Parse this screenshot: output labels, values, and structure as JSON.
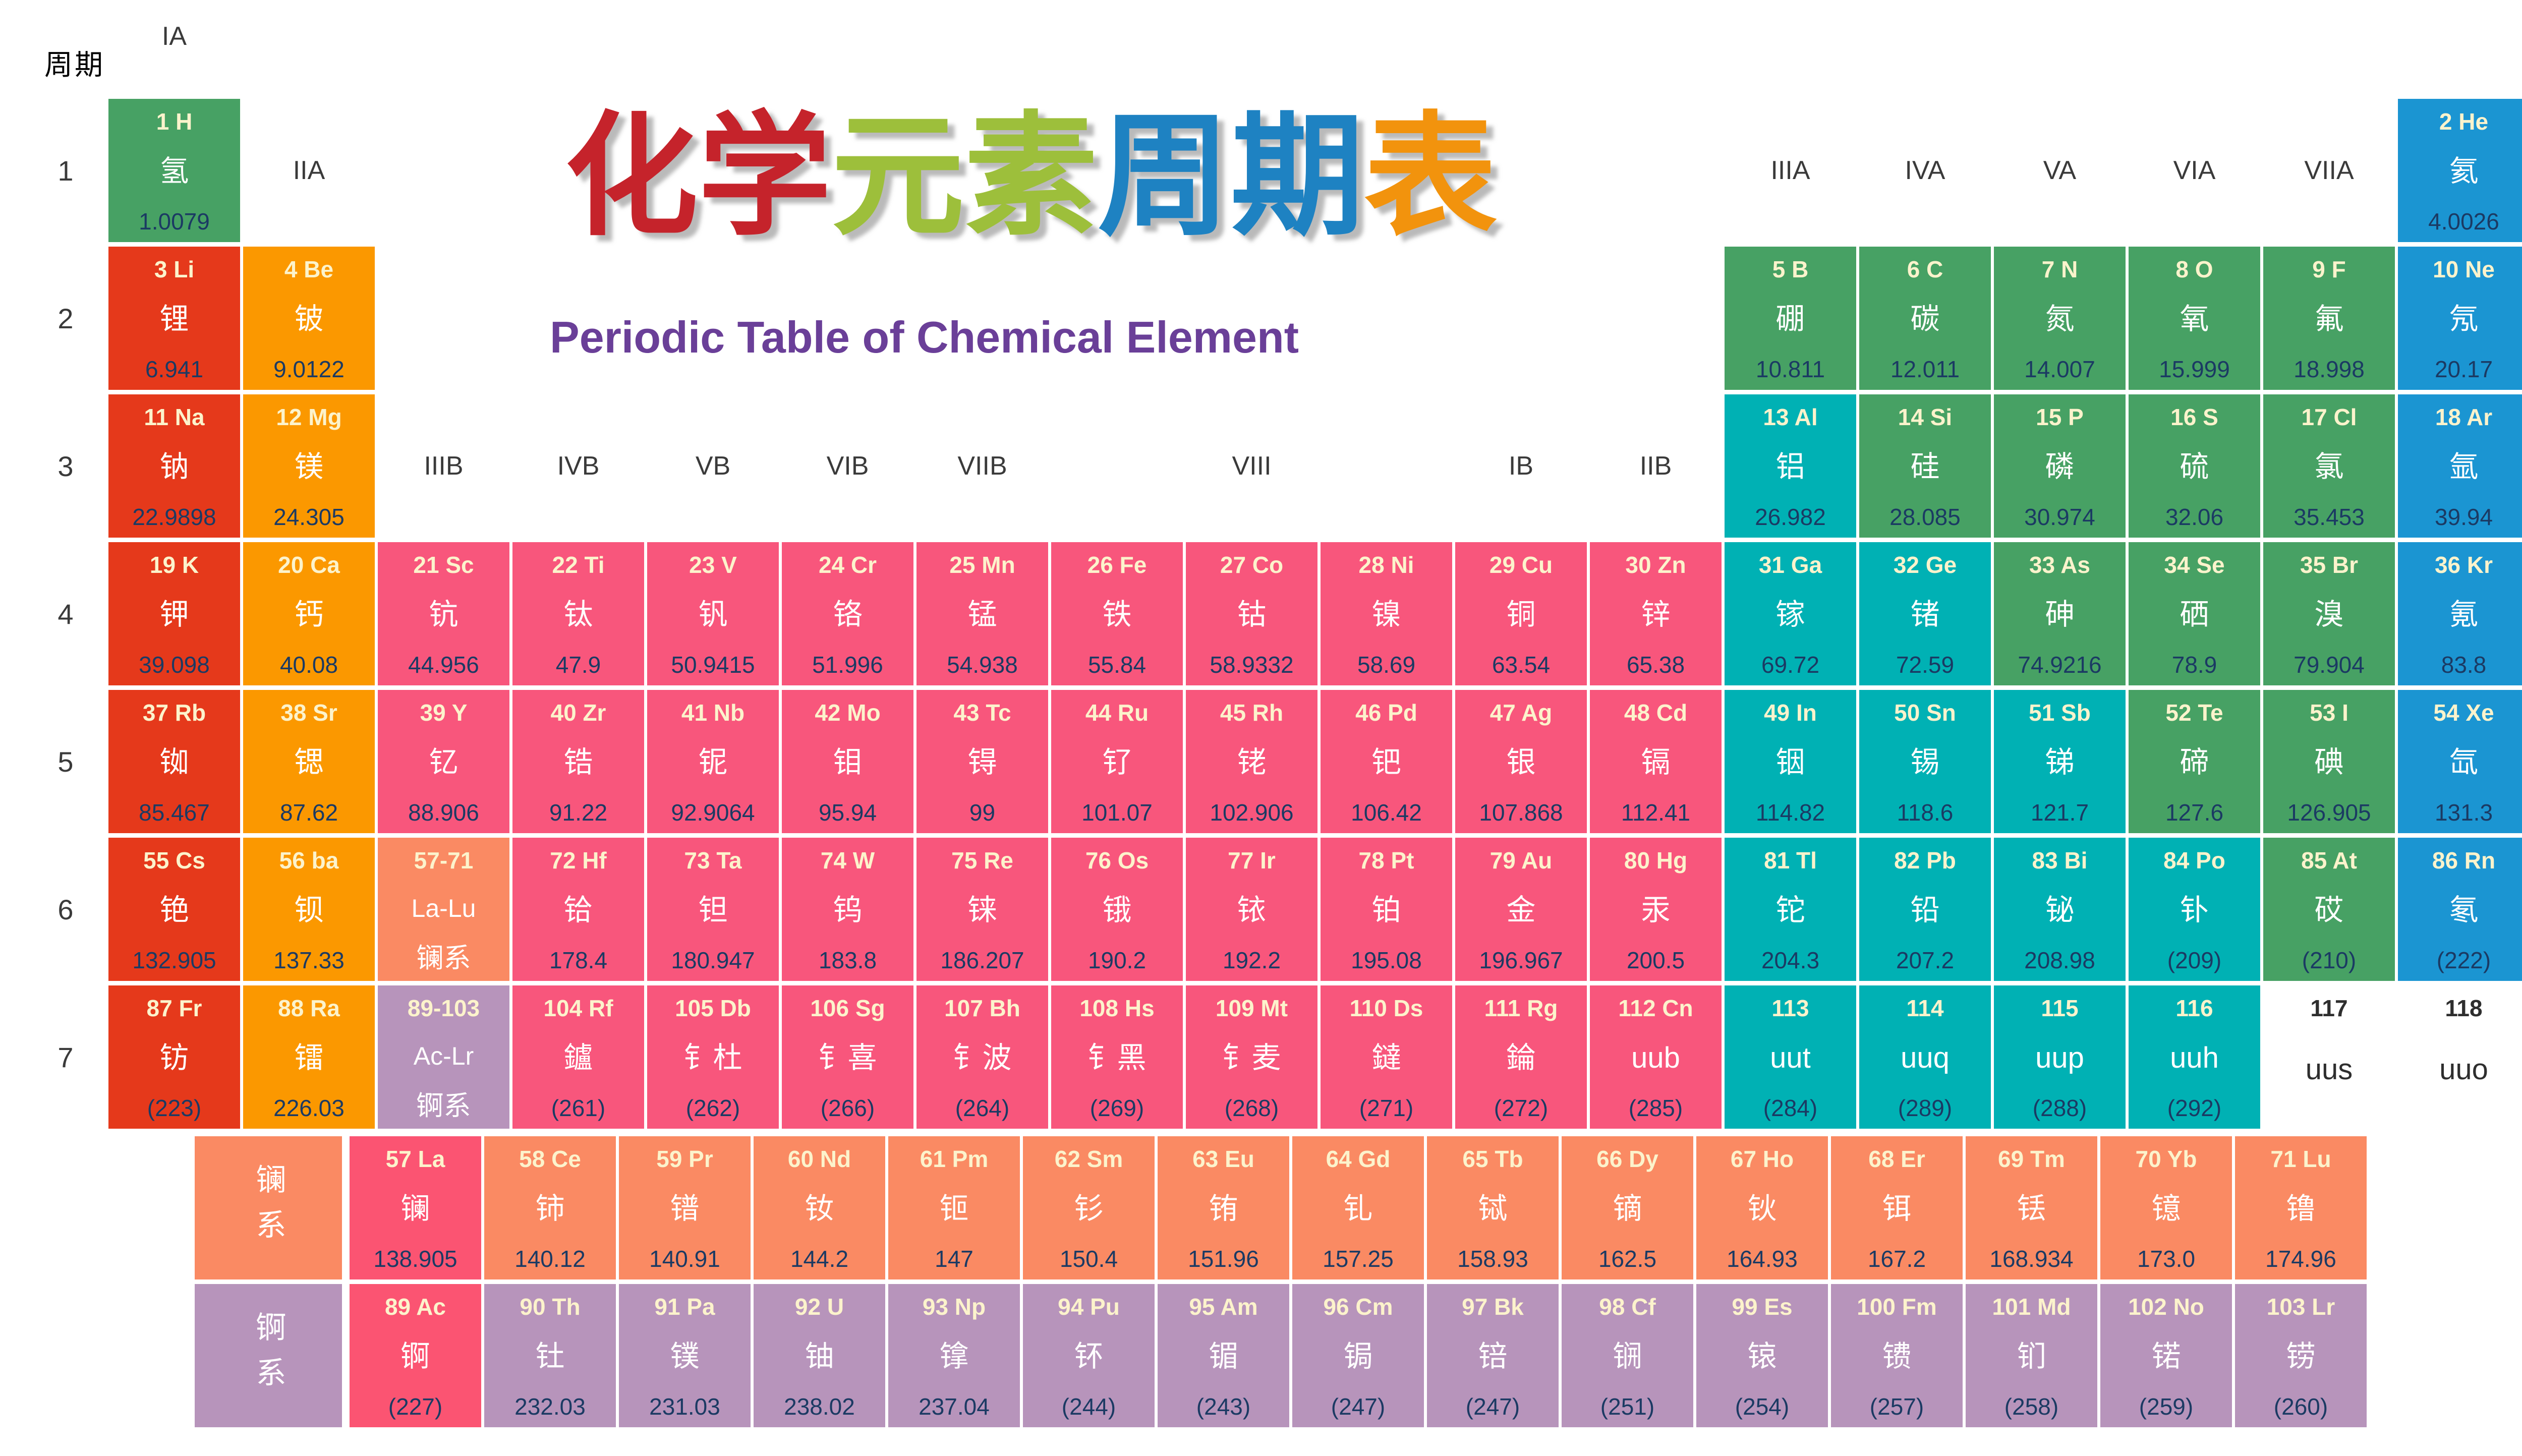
{
  "title": {
    "chars": [
      {
        "ch": "化",
        "color": "#c5232b"
      },
      {
        "ch": "学",
        "color": "#c5232b"
      },
      {
        "ch": "元",
        "color": "#9dbf3b"
      },
      {
        "ch": "素",
        "color": "#9dbf3b"
      },
      {
        "ch": "周",
        "color": "#1e82c2"
      },
      {
        "ch": "期",
        "color": "#1e82c2"
      },
      {
        "ch": "表",
        "color": "#f2930d"
      }
    ],
    "en": "Periodic Table of Chemical Element",
    "en_color": "#6a3f98"
  },
  "axis": {
    "period_label": "周期",
    "periods": [
      "1",
      "2",
      "3",
      "4",
      "5",
      "6",
      "7"
    ]
  },
  "groups": [
    {
      "t": "IA",
      "c": 1,
      "band": "top"
    },
    {
      "t": "IIA",
      "c": 2,
      "band": "p1"
    },
    {
      "t": "IIIB",
      "c": 3,
      "band": "p3"
    },
    {
      "t": "IVB",
      "c": 4,
      "band": "p3"
    },
    {
      "t": "VB",
      "c": 5,
      "band": "p3"
    },
    {
      "t": "VIB",
      "c": 6,
      "band": "p3"
    },
    {
      "t": "VIIB",
      "c": 7,
      "band": "p3"
    },
    {
      "t": "VIII",
      "c": 9,
      "band": "p3"
    },
    {
      "t": "IB",
      "c": 11,
      "band": "p3"
    },
    {
      "t": "IIB",
      "c": 12,
      "band": "p3"
    },
    {
      "t": "IIIA",
      "c": 13,
      "band": "p1"
    },
    {
      "t": "IVA",
      "c": 14,
      "band": "p1"
    },
    {
      "t": "VA",
      "c": 15,
      "band": "p1"
    },
    {
      "t": "VIA",
      "c": 16,
      "band": "p1"
    },
    {
      "t": "VIIA",
      "c": 17,
      "band": "p1"
    }
  ],
  "palette": {
    "red": "#e5391b",
    "orange": "#fb9800",
    "pink": "#f8567c",
    "teal": "#00b1b4",
    "green": "#47a164",
    "blue": "#1b95d2",
    "salmon": "#fa8a63",
    "lilac": "#b794bb",
    "hotpink": "#fb5472",
    "plain": "transparent"
  },
  "cells": [
    {
      "t": "1 H",
      "zh": "氢",
      "m": "1.0079",
      "cat": "green",
      "r": 1,
      "c": 1
    },
    {
      "t": "2 He",
      "zh": "氦",
      "m": "4.0026",
      "cat": "blue",
      "r": 1,
      "c": 18
    },
    {
      "t": "3 Li",
      "zh": "锂",
      "m": "6.941",
      "cat": "red",
      "r": 2,
      "c": 1
    },
    {
      "t": "4 Be",
      "zh": "铍",
      "m": "9.0122",
      "cat": "orange",
      "r": 2,
      "c": 2
    },
    {
      "t": "5 B",
      "zh": "硼",
      "m": "10.811",
      "cat": "green",
      "r": 2,
      "c": 13
    },
    {
      "t": "6 C",
      "zh": "碳",
      "m": "12.011",
      "cat": "green",
      "r": 2,
      "c": 14
    },
    {
      "t": "7 N",
      "zh": "氮",
      "m": "14.007",
      "cat": "green",
      "r": 2,
      "c": 15
    },
    {
      "t": "8 O",
      "zh": "氧",
      "m": "15.999",
      "cat": "green",
      "r": 2,
      "c": 16
    },
    {
      "t": "9 F",
      "zh": "氟",
      "m": "18.998",
      "cat": "green",
      "r": 2,
      "c": 17
    },
    {
      "t": "10 Ne",
      "zh": "氖",
      "m": "20.17",
      "cat": "blue",
      "r": 2,
      "c": 18
    },
    {
      "t": "11 Na",
      "zh": "钠",
      "m": "22.9898",
      "cat": "red",
      "r": 3,
      "c": 1
    },
    {
      "t": "12 Mg",
      "zh": "镁",
      "m": "24.305",
      "cat": "orange",
      "r": 3,
      "c": 2
    },
    {
      "t": "13 Al",
      "zh": "铝",
      "m": "26.982",
      "cat": "teal",
      "r": 3,
      "c": 13
    },
    {
      "t": "14 Si",
      "zh": "硅",
      "m": "28.085",
      "cat": "green",
      "r": 3,
      "c": 14
    },
    {
      "t": "15 P",
      "zh": "磷",
      "m": "30.974",
      "cat": "green",
      "r": 3,
      "c": 15
    },
    {
      "t": "16 S",
      "zh": "硫",
      "m": "32.06",
      "cat": "green",
      "r": 3,
      "c": 16
    },
    {
      "t": "17 Cl",
      "zh": "氯",
      "m": "35.453",
      "cat": "green",
      "r": 3,
      "c": 17
    },
    {
      "t": "18 Ar",
      "zh": "氩",
      "m": "39.94",
      "cat": "blue",
      "r": 3,
      "c": 18
    },
    {
      "t": "19 K",
      "zh": "钾",
      "m": "39.098",
      "cat": "red",
      "r": 4,
      "c": 1
    },
    {
      "t": "20 Ca",
      "zh": "钙",
      "m": "40.08",
      "cat": "orange",
      "r": 4,
      "c": 2
    },
    {
      "t": "21 Sc",
      "zh": "钪",
      "m": "44.956",
      "cat": "pink",
      "r": 4,
      "c": 3
    },
    {
      "t": "22 Ti",
      "zh": "钛",
      "m": "47.9",
      "cat": "pink",
      "r": 4,
      "c": 4
    },
    {
      "t": "23 V",
      "zh": "钒",
      "m": "50.9415",
      "cat": "pink",
      "r": 4,
      "c": 5
    },
    {
      "t": "24 Cr",
      "zh": "铬",
      "m": "51.996",
      "cat": "pink",
      "r": 4,
      "c": 6
    },
    {
      "t": "25 Mn",
      "zh": "锰",
      "m": "54.938",
      "cat": "pink",
      "r": 4,
      "c": 7
    },
    {
      "t": "26 Fe",
      "zh": "铁",
      "m": "55.84",
      "cat": "pink",
      "r": 4,
      "c": 8
    },
    {
      "t": "27 Co",
      "zh": "钴",
      "m": "58.9332",
      "cat": "pink",
      "r": 4,
      "c": 9
    },
    {
      "t": "28 Ni",
      "zh": "镍",
      "m": "58.69",
      "cat": "pink",
      "r": 4,
      "c": 10
    },
    {
      "t": "29 Cu",
      "zh": "铜",
      "m": "63.54",
      "cat": "pink",
      "r": 4,
      "c": 11
    },
    {
      "t": "30 Zn",
      "zh": "锌",
      "m": "65.38",
      "cat": "pink",
      "r": 4,
      "c": 12
    },
    {
      "t": "31 Ga",
      "zh": "镓",
      "m": "69.72",
      "cat": "teal",
      "r": 4,
      "c": 13
    },
    {
      "t": "32 Ge",
      "zh": "锗",
      "m": "72.59",
      "cat": "teal",
      "r": 4,
      "c": 14
    },
    {
      "t": "33 As",
      "zh": "砷",
      "m": "74.9216",
      "cat": "green",
      "r": 4,
      "c": 15
    },
    {
      "t": "34 Se",
      "zh": "硒",
      "m": "78.9",
      "cat": "green",
      "r": 4,
      "c": 16
    },
    {
      "t": "35 Br",
      "zh": "溴",
      "m": "79.904",
      "cat": "green",
      "r": 4,
      "c": 17
    },
    {
      "t": "36 Kr",
      "zh": "氪",
      "m": "83.8",
      "cat": "blue",
      "r": 4,
      "c": 18
    },
    {
      "t": "37 Rb",
      "zh": "铷",
      "m": "85.467",
      "cat": "red",
      "r": 5,
      "c": 1
    },
    {
      "t": "38 Sr",
      "zh": "锶",
      "m": "87.62",
      "cat": "orange",
      "r": 5,
      "c": 2
    },
    {
      "t": "39 Y",
      "zh": "钇",
      "m": "88.906",
      "cat": "pink",
      "r": 5,
      "c": 3
    },
    {
      "t": "40 Zr",
      "zh": "锆",
      "m": "91.22",
      "cat": "pink",
      "r": 5,
      "c": 4
    },
    {
      "t": "41 Nb",
      "zh": "铌",
      "m": "92.9064",
      "cat": "pink",
      "r": 5,
      "c": 5
    },
    {
      "t": "42 Mo",
      "zh": "钼",
      "m": "95.94",
      "cat": "pink",
      "r": 5,
      "c": 6
    },
    {
      "t": "43 Tc",
      "zh": "锝",
      "m": "99",
      "cat": "pink",
      "r": 5,
      "c": 7
    },
    {
      "t": "44 Ru",
      "zh": "钌",
      "m": "101.07",
      "cat": "pink",
      "r": 5,
      "c": 8
    },
    {
      "t": "45 Rh",
      "zh": "铑",
      "m": "102.906",
      "cat": "pink",
      "r": 5,
      "c": 9
    },
    {
      "t": "46 Pd",
      "zh": "钯",
      "m": "106.42",
      "cat": "pink",
      "r": 5,
      "c": 10
    },
    {
      "t": "47 Ag",
      "zh": "银",
      "m": "107.868",
      "cat": "pink",
      "r": 5,
      "c": 11
    },
    {
      "t": "48 Cd",
      "zh": "镉",
      "m": "112.41",
      "cat": "pink",
      "r": 5,
      "c": 12
    },
    {
      "t": "49 In",
      "zh": "铟",
      "m": "114.82",
      "cat": "teal",
      "r": 5,
      "c": 13
    },
    {
      "t": "50 Sn",
      "zh": "锡",
      "m": "118.6",
      "cat": "teal",
      "r": 5,
      "c": 14
    },
    {
      "t": "51 Sb",
      "zh": "锑",
      "m": "121.7",
      "cat": "teal",
      "r": 5,
      "c": 15
    },
    {
      "t": "52 Te",
      "zh": "碲",
      "m": "127.6",
      "cat": "green",
      "r": 5,
      "c": 16
    },
    {
      "t": "53 I",
      "zh": "碘",
      "m": "126.905",
      "cat": "green",
      "r": 5,
      "c": 17
    },
    {
      "t": "54 Xe",
      "zh": "氙",
      "m": "131.3",
      "cat": "blue",
      "r": 5,
      "c": 18
    },
    {
      "t": "55 Cs",
      "zh": "铯",
      "m": "132.905",
      "cat": "red",
      "r": 6,
      "c": 1
    },
    {
      "t": "56 ba",
      "zh": "钡",
      "m": "137.33",
      "cat": "orange",
      "r": 6,
      "c": 2
    },
    {
      "t": "57-71",
      "zh": "La-Lu",
      "m": "镧系",
      "cat": "salmon",
      "ph": true,
      "r": 6,
      "c": 3
    },
    {
      "t": "72 Hf",
      "zh": "铪",
      "m": "178.4",
      "cat": "pink",
      "r": 6,
      "c": 4
    },
    {
      "t": "73 Ta",
      "zh": "钽",
      "m": "180.947",
      "cat": "pink",
      "r": 6,
      "c": 5
    },
    {
      "t": "74 W",
      "zh": "钨",
      "m": "183.8",
      "cat": "pink",
      "r": 6,
      "c": 6
    },
    {
      "t": "75 Re",
      "zh": "铼",
      "m": "186.207",
      "cat": "pink",
      "r": 6,
      "c": 7
    },
    {
      "t": "76 Os",
      "zh": "锇",
      "m": "190.2",
      "cat": "pink",
      "r": 6,
      "c": 8
    },
    {
      "t": "77 Ir",
      "zh": "铱",
      "m": "192.2",
      "cat": "pink",
      "r": 6,
      "c": 9
    },
    {
      "t": "78 Pt",
      "zh": "铂",
      "m": "195.08",
      "cat": "pink",
      "r": 6,
      "c": 10
    },
    {
      "t": "79 Au",
      "zh": "金",
      "m": "196.967",
      "cat": "pink",
      "r": 6,
      "c": 11
    },
    {
      "t": "80 Hg",
      "zh": "汞",
      "m": "200.5",
      "cat": "pink",
      "r": 6,
      "c": 12
    },
    {
      "t": "81 Tl",
      "zh": "铊",
      "m": "204.3",
      "cat": "teal",
      "r": 6,
      "c": 13
    },
    {
      "t": "82 Pb",
      "zh": "铅",
      "m": "207.2",
      "cat": "teal",
      "r": 6,
      "c": 14
    },
    {
      "t": "83 Bi",
      "zh": "铋",
      "m": "208.98",
      "cat": "teal",
      "r": 6,
      "c": 15
    },
    {
      "t": "84 Po",
      "zh": "钋",
      "m": "(209)",
      "cat": "teal",
      "r": 6,
      "c": 16
    },
    {
      "t": "85 At",
      "zh": "砹",
      "m": "(210)",
      "cat": "green",
      "r": 6,
      "c": 17
    },
    {
      "t": "86 Rn",
      "zh": "氡",
      "m": "(222)",
      "cat": "blue",
      "r": 6,
      "c": 18
    },
    {
      "t": "87 Fr",
      "zh": "钫",
      "m": "(223)",
      "cat": "red",
      "r": 7,
      "c": 1
    },
    {
      "t": "88 Ra",
      "zh": "镭",
      "m": "226.03",
      "cat": "orange",
      "r": 7,
      "c": 2
    },
    {
      "t": "89-103",
      "zh": "Ac-Lr",
      "m": "锕系",
      "cat": "lilac",
      "ph": true,
      "r": 7,
      "c": 3
    },
    {
      "t": "104 Rf",
      "zh": "鑪",
      "m": "(261)",
      "cat": "pink",
      "r": 7,
      "c": 4
    },
    {
      "t": "105 Db",
      "zh": "钅杜",
      "m": "(262)",
      "cat": "pink",
      "r": 7,
      "c": 5
    },
    {
      "t": "106 Sg",
      "zh": "钅喜",
      "m": "(266)",
      "cat": "pink",
      "r": 7,
      "c": 6
    },
    {
      "t": "107 Bh",
      "zh": "钅波",
      "m": "(264)",
      "cat": "pink",
      "r": 7,
      "c": 7
    },
    {
      "t": "108 Hs",
      "zh": "钅黑",
      "m": "(269)",
      "cat": "pink",
      "r": 7,
      "c": 8
    },
    {
      "t": "109 Mt",
      "zh": "钅麦",
      "m": "(268)",
      "cat": "pink",
      "r": 7,
      "c": 9
    },
    {
      "t": "110 Ds",
      "zh": "鐽",
      "m": "(271)",
      "cat": "pink",
      "r": 7,
      "c": 10
    },
    {
      "t": "111 Rg",
      "zh": "錀",
      "m": "(272)",
      "cat": "pink",
      "r": 7,
      "c": 11
    },
    {
      "t": "112 Cn",
      "zh": "uub",
      "m": "(285)",
      "cat": "pink",
      "r": 7,
      "c": 12
    },
    {
      "t": "113",
      "zh": "uut",
      "m": "(284)",
      "cat": "teal",
      "r": 7,
      "c": 13
    },
    {
      "t": "114",
      "zh": "uuq",
      "m": "(289)",
      "cat": "teal",
      "r": 7,
      "c": 14
    },
    {
      "t": "115",
      "zh": "uup",
      "m": "(288)",
      "cat": "teal",
      "r": 7,
      "c": 15
    },
    {
      "t": "116",
      "zh": "uuh",
      "m": "(292)",
      "cat": "teal",
      "r": 7,
      "c": 16
    },
    {
      "t": "117",
      "zh": "uus",
      "m": "",
      "cat": "plain",
      "r": 7,
      "c": 17
    },
    {
      "t": "118",
      "zh": "uuo",
      "m": "",
      "cat": "plain",
      "r": 7,
      "c": 18
    },
    {
      "t": "",
      "zh": "镧系",
      "m": "",
      "cat": "salmon",
      "label": true,
      "r": 8,
      "c": 1
    },
    {
      "t": "57 La",
      "zh": "镧",
      "m": "138.905",
      "cat": "hotpink",
      "r": 8,
      "c": 2
    },
    {
      "t": "58 Ce",
      "zh": "铈",
      "m": "140.12",
      "cat": "salmon",
      "r": 8,
      "c": 3
    },
    {
      "t": "59 Pr",
      "zh": "镨",
      "m": "140.91",
      "cat": "salmon",
      "r": 8,
      "c": 4
    },
    {
      "t": "60 Nd",
      "zh": "钕",
      "m": "144.2",
      "cat": "salmon",
      "r": 8,
      "c": 5
    },
    {
      "t": "61 Pm",
      "zh": "钷",
      "m": "147",
      "cat": "salmon",
      "r": 8,
      "c": 6
    },
    {
      "t": "62 Sm",
      "zh": "钐",
      "m": "150.4",
      "cat": "salmon",
      "r": 8,
      "c": 7
    },
    {
      "t": "63 Eu",
      "zh": "铕",
      "m": "151.96",
      "cat": "salmon",
      "r": 8,
      "c": 8
    },
    {
      "t": "64 Gd",
      "zh": "钆",
      "m": "157.25",
      "cat": "salmon",
      "r": 8,
      "c": 9
    },
    {
      "t": "65 Tb",
      "zh": "铽",
      "m": "158.93",
      "cat": "salmon",
      "r": 8,
      "c": 10
    },
    {
      "t": "66 Dy",
      "zh": "镝",
      "m": "162.5",
      "cat": "salmon",
      "r": 8,
      "c": 11
    },
    {
      "t": "67 Ho",
      "zh": "钬",
      "m": "164.93",
      "cat": "salmon",
      "r": 8,
      "c": 12
    },
    {
      "t": "68 Er",
      "zh": "铒",
      "m": "167.2",
      "cat": "salmon",
      "r": 8,
      "c": 13
    },
    {
      "t": "69 Tm",
      "zh": "铥",
      "m": "168.934",
      "cat": "salmon",
      "r": 8,
      "c": 14
    },
    {
      "t": "70 Yb",
      "zh": "镱",
      "m": "173.0",
      "cat": "salmon",
      "r": 8,
      "c": 15
    },
    {
      "t": "71 Lu",
      "zh": "镥",
      "m": "174.96",
      "cat": "salmon",
      "r": 8,
      "c": 16
    },
    {
      "t": "",
      "zh": "锕系",
      "m": "",
      "cat": "lilac",
      "label": true,
      "r": 9,
      "c": 1
    },
    {
      "t": "89 Ac",
      "zh": "锕",
      "m": "(227)",
      "cat": "hotpink",
      "r": 9,
      "c": 2
    },
    {
      "t": "90 Th",
      "zh": "钍",
      "m": "232.03",
      "cat": "lilac",
      "r": 9,
      "c": 3
    },
    {
      "t": "91 Pa",
      "zh": "镤",
      "m": "231.03",
      "cat": "lilac",
      "r": 9,
      "c": 4
    },
    {
      "t": "92 U",
      "zh": "铀",
      "m": "238.02",
      "cat": "lilac",
      "r": 9,
      "c": 5
    },
    {
      "t": "93 Np",
      "zh": "镎",
      "m": "237.04",
      "cat": "lilac",
      "r": 9,
      "c": 6
    },
    {
      "t": "94 Pu",
      "zh": "钚",
      "m": "(244)",
      "cat": "lilac",
      "r": 9,
      "c": 7
    },
    {
      "t": "95 Am",
      "zh": "镅",
      "m": "(243)",
      "cat": "lilac",
      "r": 9,
      "c": 8
    },
    {
      "t": "96 Cm",
      "zh": "锔",
      "m": "(247)",
      "cat": "lilac",
      "r": 9,
      "c": 9
    },
    {
      "t": "97 Bk",
      "zh": "锫",
      "m": "(247)",
      "cat": "lilac",
      "r": 9,
      "c": 10
    },
    {
      "t": "98 Cf",
      "zh": "锎",
      "m": "(251)",
      "cat": "lilac",
      "r": 9,
      "c": 11
    },
    {
      "t": "99 Es",
      "zh": "锿",
      "m": "(254)",
      "cat": "lilac",
      "r": 9,
      "c": 12
    },
    {
      "t": "100 Fm",
      "zh": "镄",
      "m": "(257)",
      "cat": "lilac",
      "r": 9,
      "c": 13
    },
    {
      "t": "101 Md",
      "zh": "钔",
      "m": "(258)",
      "cat": "lilac",
      "r": 9,
      "c": 14
    },
    {
      "t": "102 No",
      "zh": "锘",
      "m": "(259)",
      "cat": "lilac",
      "r": 9,
      "c": 15
    },
    {
      "t": "103 Lr",
      "zh": "铹",
      "m": "(260)",
      "cat": "lilac",
      "r": 9,
      "c": 16
    }
  ]
}
